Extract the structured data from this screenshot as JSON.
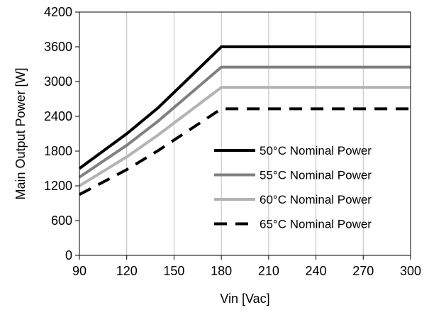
{
  "chart_data": {
    "type": "line",
    "title": "",
    "xlabel": "Vin [Vac]",
    "ylabel": "Main Output Power [W]",
    "xlim": [
      90,
      300
    ],
    "ylim": [
      0,
      4200
    ],
    "xticks": [
      90,
      120,
      150,
      180,
      210,
      240,
      270,
      300
    ],
    "yticks": [
      0,
      600,
      1200,
      1800,
      2400,
      3000,
      3600,
      4200
    ],
    "grid": "vertical",
    "legend_position": "lower-right",
    "series": [
      {
        "name": "50°C Nominal Power",
        "color": "#000000",
        "style": "solid",
        "x": [
          90,
          120,
          140,
          180,
          300
        ],
        "y": [
          1500,
          2100,
          2550,
          3600,
          3600
        ]
      },
      {
        "name": "55°C Nominal Power",
        "color": "#808080",
        "style": "solid",
        "x": [
          90,
          120,
          140,
          180,
          300
        ],
        "y": [
          1350,
          1900,
          2320,
          3250,
          3250
        ]
      },
      {
        "name": "60°C Nominal Power",
        "color": "#b3b3b3",
        "style": "solid",
        "x": [
          90,
          120,
          140,
          180,
          300
        ],
        "y": [
          1200,
          1700,
          2080,
          2900,
          2900
        ]
      },
      {
        "name": "65°C Nominal Power",
        "color": "#000000",
        "style": "dashed",
        "x": [
          90,
          120,
          140,
          180,
          300
        ],
        "y": [
          1050,
          1480,
          1810,
          2530,
          2530
        ]
      }
    ]
  }
}
